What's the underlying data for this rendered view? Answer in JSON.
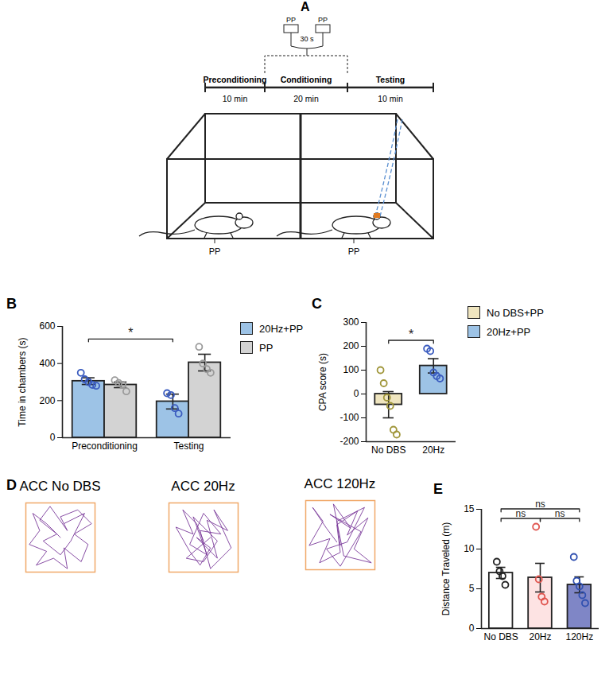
{
  "diagram": {
    "panel_label": "A",
    "timeline": [
      {
        "label": "Preconditioning",
        "duration": "10 min"
      },
      {
        "label": "Conditioning",
        "duration": "20 min"
      },
      {
        "label": "Testing",
        "duration": "10 min"
      }
    ],
    "stimulus": {
      "label": "PP",
      "interval": "30 s"
    },
    "chambers": [
      {
        "label": "PP"
      },
      {
        "label": "PP"
      }
    ]
  },
  "chart_data": [
    {
      "panel_label": "B",
      "type": "bar",
      "categories": [
        "Preconditioning",
        "Testing"
      ],
      "series": [
        {
          "name": "20Hz+PP",
          "color": "#9dc3e6",
          "values": [
            305,
            195
          ],
          "errors": [
            18,
            40
          ],
          "points": [
            [
              350,
              315,
              300,
              285,
              280
            ],
            [
              240,
              230,
              160,
              130
            ]
          ],
          "point_color": "#3a5bbf"
        },
        {
          "name": "PP",
          "color": "#d3d3d3",
          "values": [
            285,
            405
          ],
          "errors": [
            15,
            45
          ],
          "points": [
            [
              310,
              295,
              285,
              250
            ],
            [
              490,
              400,
              370,
              350
            ]
          ],
          "point_color": "#9a9a9a"
        }
      ],
      "ylabel": "Time in chambers (s)",
      "ylim": [
        0,
        600
      ],
      "yticks": [
        0,
        200,
        400,
        600
      ],
      "legend": "right",
      "annotations": [
        {
          "text": "*",
          "from": {
            "category": "Preconditioning",
            "series": "20Hz+PP"
          },
          "to": {
            "category": "Testing",
            "series": "20Hz+PP"
          }
        }
      ]
    },
    {
      "panel_label": "C",
      "type": "bar",
      "categories": [
        "No DBS",
        "20Hz"
      ],
      "series": [
        {
          "name": "No DBS+PP",
          "color": "#efe5bf",
          "values": [
            -45,
            null
          ],
          "errors": [
            55,
            null
          ],
          "points": [
            [
              100,
              45,
              -15,
              -50,
              -150,
              -170
            ],
            []
          ],
          "point_color": "#a0963a"
        },
        {
          "name": "20Hz+PP",
          "color": "#9dc3e6",
          "values": [
            null,
            118
          ],
          "errors": [
            null,
            30
          ],
          "points": [
            [],
            [
              190,
              180,
              90,
              75,
              65
            ]
          ],
          "point_color": "#3a5bbf"
        }
      ],
      "ylabel": "CPA score (s)",
      "ylim": [
        -200,
        300
      ],
      "yticks": [
        -200,
        -100,
        0,
        100,
        200,
        300
      ],
      "legend": "right",
      "annotations": [
        {
          "text": "*",
          "from": "No DBS",
          "to": "20Hz"
        }
      ]
    },
    {
      "panel_label": "D",
      "type": "line",
      "title": "ACC No DBS",
      "color": "#7a3a9a",
      "tick_labels": false,
      "xlim": [
        0,
        1
      ],
      "ylim": [
        0,
        1
      ],
      "x": [
        0.5,
        0.3,
        0.1,
        0.2,
        0.05,
        0.3,
        0.15,
        0.4,
        0.6,
        0.55,
        0.8,
        0.9,
        0.7,
        0.95,
        0.75,
        0.5,
        0.6,
        0.35,
        0.2,
        0.45,
        0.25,
        0.5,
        0.65,
        0.85,
        0.55
      ],
      "y": [
        0.5,
        0.7,
        0.85,
        0.6,
        0.4,
        0.3,
        0.1,
        0.2,
        0.05,
        0.35,
        0.15,
        0.4,
        0.55,
        0.7,
        0.9,
        0.8,
        0.6,
        0.95,
        0.75,
        0.55,
        0.45,
        0.25,
        0.45,
        0.85,
        0.7
      ]
    },
    {
      "type": "line",
      "title": "ACC 20Hz",
      "color": "#7a3a9a",
      "tick_labels": false,
      "xlim": [
        0,
        1
      ],
      "ylim": [
        0,
        1
      ],
      "x": [
        0.5,
        0.4,
        0.2,
        0.35,
        0.1,
        0.3,
        0.45,
        0.6,
        0.4,
        0.7,
        0.55,
        0.85,
        0.65,
        0.9,
        0.6,
        0.45,
        0.75,
        0.5,
        0.3,
        0.55,
        0.35,
        0.7,
        0.5,
        0.25,
        0.6
      ],
      "y": [
        0.45,
        0.7,
        0.9,
        0.55,
        0.65,
        0.3,
        0.1,
        0.35,
        0.5,
        0.2,
        0.75,
        0.6,
        0.9,
        0.35,
        0.05,
        0.6,
        0.55,
        0.85,
        0.4,
        0.25,
        0.8,
        0.45,
        0.15,
        0.2,
        0.5
      ]
    },
    {
      "type": "line",
      "title": "ACC 120Hz",
      "color": "#7a3a9a",
      "tick_labels": false,
      "xlim": [
        0,
        1
      ],
      "ylim": [
        0,
        1
      ],
      "x": [
        0.45,
        0.3,
        0.1,
        0.25,
        0.05,
        0.35,
        0.2,
        0.5,
        0.45,
        0.75,
        0.6,
        0.9,
        0.7,
        0.95,
        0.55,
        0.4,
        0.65,
        0.35,
        0.8,
        0.5,
        0.3,
        0.6,
        0.85,
        0.45,
        0.5
      ],
      "y": [
        0.4,
        0.6,
        0.9,
        0.7,
        0.35,
        0.45,
        0.1,
        0.25,
        0.65,
        0.85,
        0.5,
        0.75,
        0.3,
        0.1,
        0.2,
        0.95,
        0.6,
        0.8,
        0.55,
        0.05,
        0.3,
        0.4,
        0.9,
        0.7,
        0.35
      ]
    },
    {
      "panel_label": "E",
      "type": "bar",
      "categories": [
        "No DBS",
        "20Hz",
        "120Hz"
      ],
      "series": [
        {
          "values": [
            7.0,
            6.4,
            5.5
          ],
          "colors": [
            "#ffffff",
            "#fde3e3",
            "#7f86c6"
          ],
          "errors": [
            0.7,
            1.8,
            1.0
          ],
          "points": [
            [
              8.4,
              7.2,
              6.6,
              5.5
            ],
            [
              12.8,
              6.2,
              4.0,
              3.4
            ],
            [
              9.0,
              6.0,
              5.3,
              4.2,
              3.2
            ]
          ],
          "point_colors": [
            "#222222",
            "#e0554f",
            "#3050b0"
          ]
        }
      ],
      "ylabel": "Distance Traveled (m)",
      "ylim": [
        0,
        15
      ],
      "yticks": [
        0,
        5,
        10,
        15
      ],
      "annotations": [
        {
          "text": "ns",
          "from": "No DBS",
          "to": "20Hz"
        },
        {
          "text": "ns",
          "from": "20Hz",
          "to": "120Hz"
        },
        {
          "text": "ns",
          "from": "No DBS",
          "to": "120Hz"
        }
      ]
    }
  ]
}
